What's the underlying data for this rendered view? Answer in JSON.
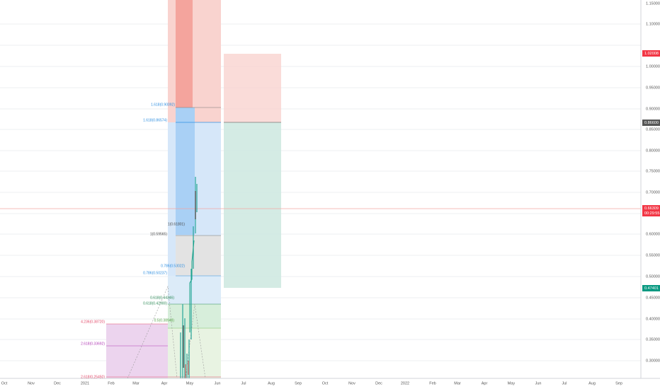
{
  "price_axis": [
    "1.15000",
    "1.10000",
    "1.00000",
    "0.95000",
    "0.90000",
    "0.85000",
    "0.80000",
    "0.75000",
    "0.70000",
    "0.60000",
    "0.55000",
    "0.50000",
    "0.45000",
    "0.40000",
    "0.35000",
    "0.30000"
  ],
  "price_tags": {
    "target": "1.02008",
    "entry": "0.86600",
    "last": "0.66309",
    "countdown": "00:29:55",
    "stop": "0.47401"
  },
  "time_axis": [
    "Oct",
    "Nov",
    "Dec",
    "2021",
    "Feb",
    "Mar",
    "Apr",
    "May",
    "Jun",
    "Jul",
    "Aug",
    "Sep",
    "Oct",
    "Nov",
    "Dec",
    "2022",
    "Feb",
    "Mar",
    "Apr",
    "May",
    "Jun",
    "Jul",
    "Aug",
    "Sep"
  ],
  "fib_labels": [
    "1.618(0.90092)",
    "1.618(0.86574)",
    "1(0.61801)",
    "1(0.59565)",
    "0.786(0.53022)",
    "0.786(0.50237)",
    "0.618(0.44346)",
    "0.618(0.42900)",
    "0.5(0.38948)",
    "4.236(0.38720)",
    "2.618(0.33692)",
    "2.618(0.25450)"
  ]
}
